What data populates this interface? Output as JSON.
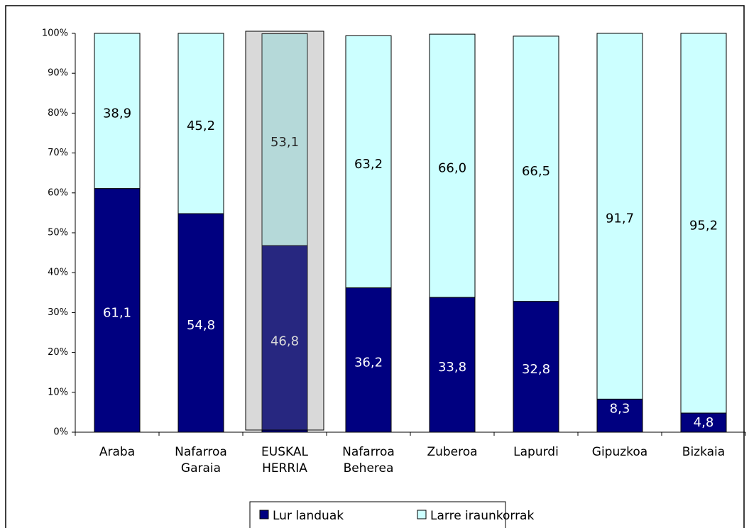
{
  "chart_data": {
    "type": "stacked_bar",
    "categories": [
      "Araba",
      "Nafarroa Garaia",
      "EUSKAL HERRIA",
      "Nafarroa Beherea",
      "Zuberoa",
      "Lapurdi",
      "Gipuzkoa",
      "Bizkaia"
    ],
    "series": [
      {
        "name": "Lur landuak",
        "color": "#000080",
        "values": [
          61.1,
          54.8,
          46.8,
          36.2,
          33.8,
          32.8,
          8.3,
          4.8
        ],
        "value_labels": [
          "61,1",
          "54,8",
          "46,8",
          "36,2",
          "33,8",
          "32,8",
          "8,3",
          "4,8"
        ]
      },
      {
        "name": "Larre iraunkorrak",
        "color": "#ccffff",
        "values": [
          38.9,
          45.2,
          53.1,
          63.2,
          66.0,
          66.5,
          91.7,
          95.2
        ],
        "value_labels": [
          "38,9",
          "45,2",
          "53,1",
          "63,2",
          "66,0",
          "66,5",
          "91,7",
          "95,2"
        ]
      }
    ],
    "ylim": [
      0,
      100
    ],
    "yticks": [
      {
        "value": 0,
        "label": "0%"
      },
      {
        "value": 10,
        "label": "10%"
      },
      {
        "value": 20,
        "label": "20%"
      },
      {
        "value": 30,
        "label": "30%"
      },
      {
        "value": 40,
        "label": "40%"
      },
      {
        "value": 50,
        "label": "50%"
      },
      {
        "value": 60,
        "label": "60%"
      },
      {
        "value": 70,
        "label": "70%"
      },
      {
        "value": 80,
        "label": "80%"
      },
      {
        "value": 90,
        "label": "90%"
      },
      {
        "value": 100,
        "label": "100%"
      }
    ],
    "highlight": 2,
    "legend": "bottom"
  }
}
